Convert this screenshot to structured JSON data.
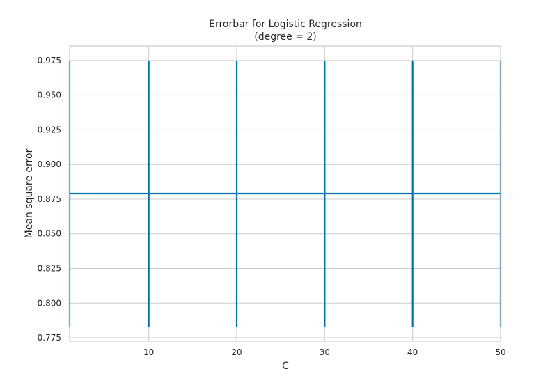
{
  "chart_data": {
    "type": "line",
    "title_lines": [
      "Errorbar for Logistic Regression",
      "(degree = 2)"
    ],
    "xlabel": "C",
    "ylabel": "Mean square error",
    "xlim": [
      1,
      50
    ],
    "ylim": [
      0.7725,
      0.9855
    ],
    "x_ticks": [
      10,
      20,
      30,
      40,
      50
    ],
    "x_tick_labels": [
      "10",
      "20",
      "30",
      "40",
      "50"
    ],
    "y_ticks": [
      0.775,
      0.8,
      0.825,
      0.85,
      0.875,
      0.9,
      0.925,
      0.95,
      0.975
    ],
    "y_tick_labels": [
      "0.775",
      "0.800",
      "0.825",
      "0.850",
      "0.875",
      "0.900",
      "0.925",
      "0.950",
      "0.975"
    ],
    "grid": true,
    "series": [
      {
        "color": "#0072b2",
        "x": [
          1,
          10,
          20,
          30,
          40,
          50
        ],
        "y": [
          0.879,
          0.879,
          0.879,
          0.879,
          0.879,
          0.879
        ],
        "yerr_low": [
          0.783,
          0.783,
          0.783,
          0.783,
          0.783,
          0.783
        ],
        "yerr_high": [
          0.975,
          0.975,
          0.975,
          0.975,
          0.975,
          0.975
        ]
      }
    ]
  }
}
